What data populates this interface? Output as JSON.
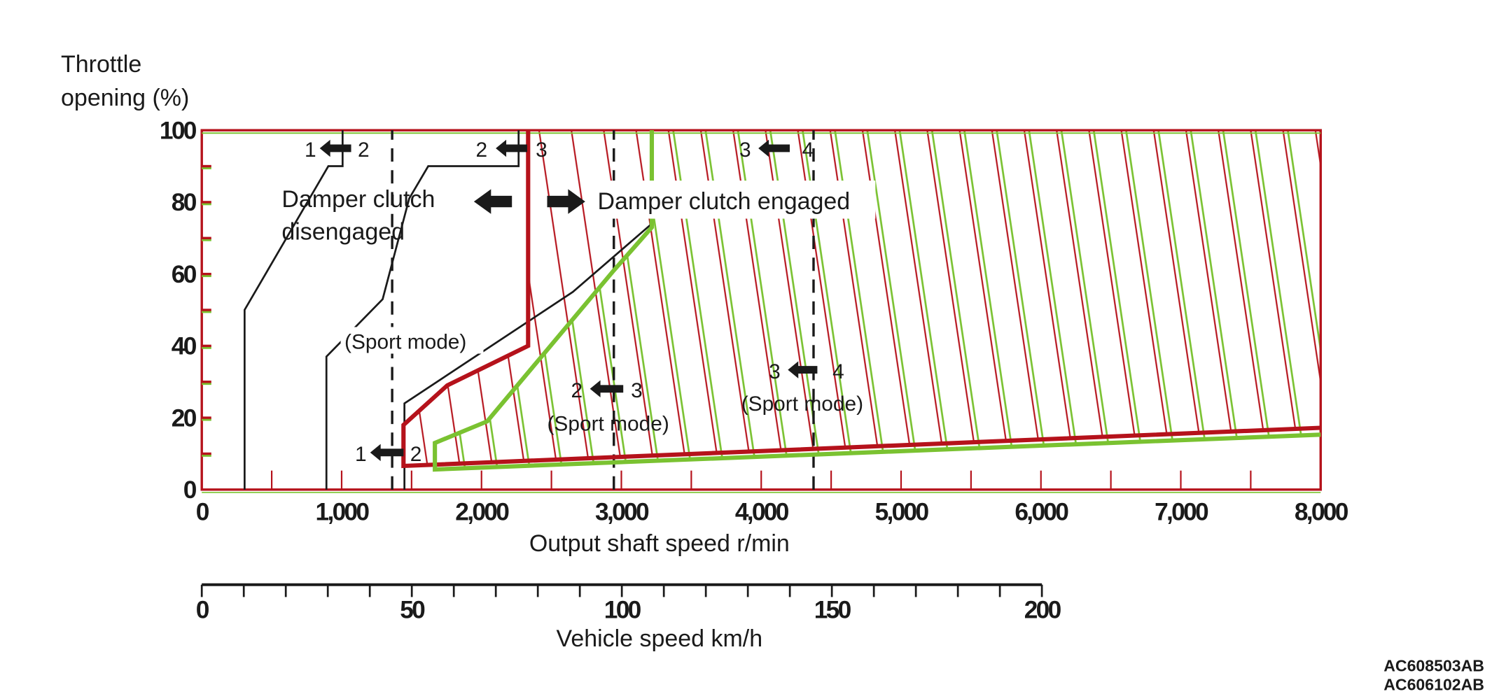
{
  "chart_data": {
    "type": "line",
    "title": "",
    "xlabel": "Output shaft speed r/min",
    "ylabel": "Throttle opening (%)",
    "xlim": [
      0,
      8000
    ],
    "ylim": [
      0,
      100
    ],
    "x_ticks": [
      0,
      1000,
      2000,
      3000,
      4000,
      5000,
      6000,
      7000,
      8000
    ],
    "x_tick_labels": [
      "0",
      "1,000",
      "2,000",
      "3,000",
      "4,000",
      "5,000",
      "6,000",
      "7,000",
      "8,000"
    ],
    "y_ticks": [
      0,
      20,
      40,
      60,
      80,
      100
    ],
    "y_tick_labels": [
      "0",
      "20",
      "40",
      "60",
      "80",
      "100"
    ],
    "secondary_axis": {
      "label": "Vehicle speed km/h",
      "range": [
        0,
        200
      ],
      "ticks": [
        0,
        50,
        100,
        150,
        200
      ],
      "tick_labels": [
        "0",
        "50",
        "100",
        "150",
        "200"
      ]
    },
    "series": [
      {
        "name": "shift-1-2",
        "color": "#1a1a1a",
        "points": [
          [
            306,
            0
          ],
          [
            306,
            50
          ],
          [
            905,
            90
          ],
          [
            1007,
            90
          ],
          [
            1007,
            100
          ]
        ]
      },
      {
        "name": "shift-2-3",
        "color": "#1a1a1a",
        "points": [
          [
            891,
            0
          ],
          [
            891,
            37
          ],
          [
            1293,
            53
          ],
          [
            1483,
            81
          ],
          [
            1619,
            90
          ],
          [
            2265,
            90
          ],
          [
            2265,
            100
          ]
        ]
      },
      {
        "name": "shift-2-3-sport",
        "color": "#1a1a1a",
        "points": [
          [
            1449,
            0
          ],
          [
            1449,
            24
          ],
          [
            2653,
            55
          ],
          [
            3218,
            74
          ]
        ]
      },
      {
        "name": "sport-1-2-dashed",
        "color": "#1a1a1a",
        "dashed": true,
        "points": [
          [
            1361,
            0
          ],
          [
            1361,
            100
          ]
        ]
      },
      {
        "name": "sport-2-3-dashed",
        "color": "#1a1a1a",
        "dashed": true,
        "points": [
          [
            2946,
            0
          ],
          [
            2946,
            100
          ]
        ]
      },
      {
        "name": "sport-3-4-dashed",
        "color": "#1a1a1a",
        "dashed": true,
        "points": [
          [
            4374,
            0
          ],
          [
            4374,
            100
          ]
        ]
      },
      {
        "name": "damper-clutch-boundary-red",
        "color": "#b5121b",
        "points": [
          [
            8000,
            17.2
          ],
          [
            1442,
            6.6
          ],
          [
            1442,
            18
          ],
          [
            1755,
            29
          ],
          [
            2333,
            40
          ],
          [
            2333,
            100
          ]
        ]
      },
      {
        "name": "damper-clutch-boundary-green",
        "color": "#7ac231",
        "points": [
          [
            8000,
            15.3
          ],
          [
            1667,
            5.6
          ],
          [
            1667,
            13
          ],
          [
            2041,
            19
          ],
          [
            2946,
            61
          ],
          [
            3218,
            73
          ],
          [
            3218,
            100
          ]
        ]
      }
    ],
    "annotations": {
      "shift_1_2_top": [
        "1",
        "2"
      ],
      "shift_2_3_top": [
        "2",
        "3"
      ],
      "shift_3_4_top": [
        "3",
        "4"
      ],
      "shift_1_2_low": [
        "1",
        "2"
      ],
      "shift_2_3_sport": [
        "2",
        "3"
      ],
      "shift_3_4_sport": [
        "3",
        "4"
      ],
      "sport_mode": "(Sport mode)",
      "disengaged_line1": "Damper clutch",
      "disengaged_line2": "disengaged",
      "engaged": "Damper clutch engaged"
    },
    "figure_id": "AC608503AB",
    "figure_id_ghost": "AC606102AB"
  },
  "colors": {
    "red": "#b5121b",
    "green": "#7ac231",
    "black": "#1a1a1a"
  }
}
